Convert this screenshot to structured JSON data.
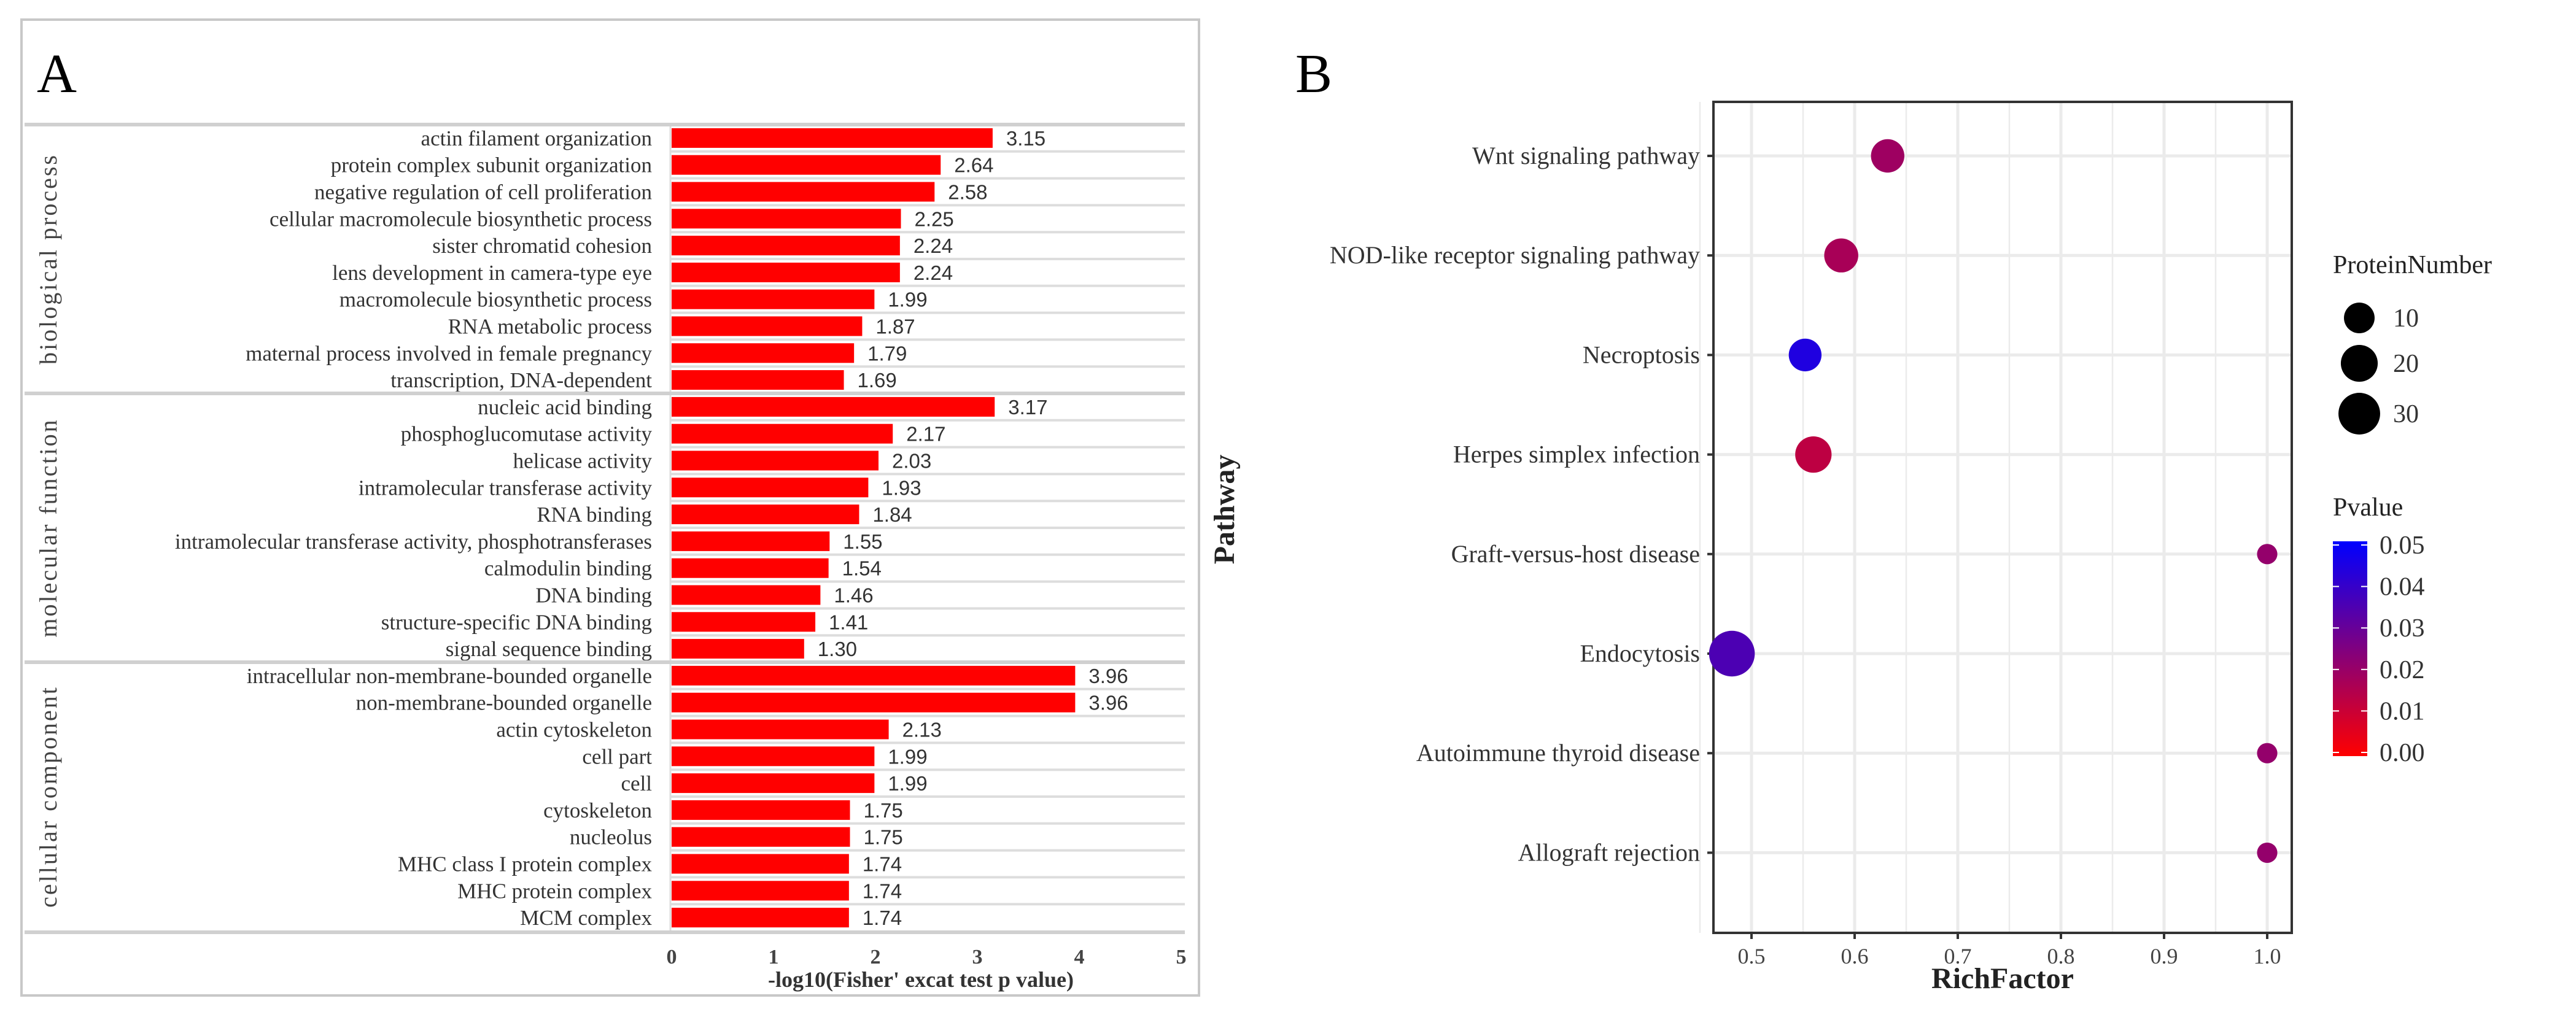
{
  "chart_data": [
    {
      "type": "bar",
      "panel_label": "A",
      "orientation": "horizontal",
      "xlabel": "-log10(Fisher' excat test p value)",
      "xlim": [
        0,
        5
      ],
      "xticks": [
        "0",
        "1",
        "2",
        "3",
        "4",
        "5"
      ],
      "bar_color": "#ff0000",
      "groups": [
        {
          "name": "biological process",
          "categories": [
            "actin filament organization",
            "protein complex subunit organization",
            "negative regulation of cell proliferation",
            "cellular macromolecule biosynthetic process",
            "sister chromatid cohesion",
            "lens development in camera-type eye",
            "macromolecule biosynthetic process",
            "RNA metabolic process",
            "maternal process involved in female pregnancy",
            "transcription, DNA-dependent"
          ],
          "values": [
            3.15,
            2.64,
            2.58,
            2.25,
            2.24,
            2.24,
            1.99,
            1.87,
            1.79,
            1.69
          ],
          "labels": [
            "3.15",
            "2.64",
            "2.58",
            "2.25",
            "2.24",
            "2.24",
            "1.99",
            "1.87",
            "1.79",
            "1.69"
          ]
        },
        {
          "name": "molecular function",
          "categories": [
            "nucleic acid binding",
            "phosphoglucomutase activity",
            "helicase activity",
            "intramolecular transferase activity",
            "RNA binding",
            "intramolecular transferase activity, phosphotransferases",
            "calmodulin binding",
            "DNA binding",
            "structure-specific DNA binding",
            "signal sequence binding"
          ],
          "values": [
            3.17,
            2.17,
            2.03,
            1.93,
            1.84,
            1.55,
            1.54,
            1.46,
            1.41,
            1.3
          ],
          "labels": [
            "3.17",
            "2.17",
            "2.03",
            "1.93",
            "1.84",
            "1.55",
            "1.54",
            "1.46",
            "1.41",
            "1.30"
          ]
        },
        {
          "name": "cellular component",
          "categories": [
            "intracellular non-membrane-bounded organelle",
            "non-membrane-bounded organelle",
            "actin cytoskeleton",
            "cell part",
            "cell",
            "cytoskeleton",
            "nucleolus",
            "MHC class I protein complex",
            "MHC protein complex",
            "MCM complex"
          ],
          "values": [
            3.96,
            3.96,
            2.13,
            1.99,
            1.99,
            1.75,
            1.75,
            1.74,
            1.74,
            1.74
          ],
          "labels": [
            "3.96",
            "3.96",
            "2.13",
            "1.99",
            "1.99",
            "1.75",
            "1.75",
            "1.74",
            "1.74",
            "1.74"
          ]
        }
      ]
    },
    {
      "type": "scatter",
      "panel_label": "B",
      "xlabel": "RichFactor",
      "ylabel": "Pathway",
      "xlim": [
        0.45,
        1.02
      ],
      "xticks": [
        "0.5",
        "0.6",
        "0.7",
        "0.8",
        "0.9",
        "1.0"
      ],
      "xtick_values": [
        0.5,
        0.6,
        0.7,
        0.8,
        0.9,
        1.0
      ],
      "grid": true,
      "categories": [
        "Wnt signaling pathway",
        "NOD-like receptor signaling pathway",
        "Necroptosis",
        "Herpes simplex infection",
        "Graft-versus-host disease",
        "Endocytosis",
        "Autoimmune thyroid disease",
        "Allograft rejection"
      ],
      "richfactor": [
        0.632,
        0.587,
        0.552,
        0.56,
        1.0,
        0.481,
        1.0,
        1.0
      ],
      "pvalue": [
        0.019,
        0.017,
        0.044,
        0.013,
        0.021,
        0.035,
        0.021,
        0.021
      ],
      "protein_number": [
        14,
        15,
        13,
        19,
        1,
        40,
        1,
        1
      ],
      "size_legend": {
        "title": "ProteinNumber",
        "values": [
          10,
          20,
          30
        ],
        "labels": [
          "10",
          "20",
          "30"
        ],
        "placement": "right"
      },
      "color_legend": {
        "title": "Pvalue",
        "range": [
          0,
          0.05
        ],
        "low_color": "#ff0000",
        "high_color": "#0000ff",
        "labels": [
          "0.05",
          "0.04",
          "0.03",
          "0.02",
          "0.01",
          "0.00"
        ],
        "placement": "right"
      }
    }
  ]
}
